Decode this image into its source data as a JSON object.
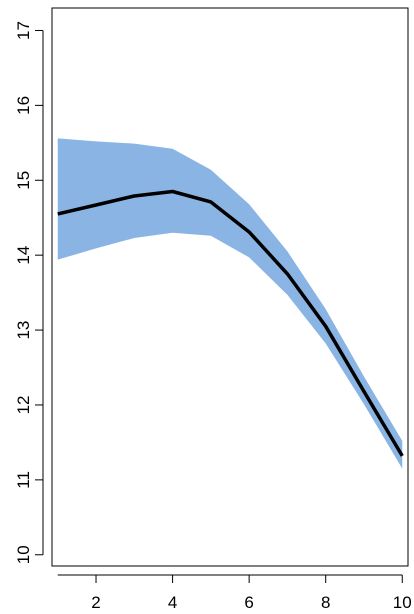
{
  "chart_data": {
    "type": "line",
    "title": "",
    "xlabel": "",
    "ylabel": "",
    "xlim": [
      0.85,
      10.15
    ],
    "ylim": [
      9.85,
      17.3
    ],
    "x_ticks": [
      2,
      4,
      6,
      8,
      10
    ],
    "y_ticks": [
      10,
      11,
      12,
      13,
      14,
      15,
      16,
      17
    ],
    "grid": false,
    "legend": "none",
    "series": [
      {
        "type": "line",
        "color": "#000000",
        "x": [
          1,
          2,
          3,
          4,
          5,
          6,
          7,
          8,
          9,
          10
        ],
        "y": [
          14.55,
          14.67,
          14.79,
          14.85,
          14.71,
          14.31,
          13.75,
          13.05,
          12.18,
          11.32
        ]
      }
    ],
    "band": {
      "color": "#8AB4E4",
      "x": [
        1,
        2,
        3,
        4,
        5,
        6,
        7,
        8,
        9,
        10
      ],
      "upper": [
        15.56,
        15.52,
        15.49,
        15.42,
        15.14,
        14.68,
        14.05,
        13.28,
        12.38,
        11.52
      ],
      "lower": [
        13.94,
        14.09,
        14.23,
        14.3,
        14.26,
        13.97,
        13.47,
        12.82,
        12.01,
        11.15
      ]
    }
  }
}
